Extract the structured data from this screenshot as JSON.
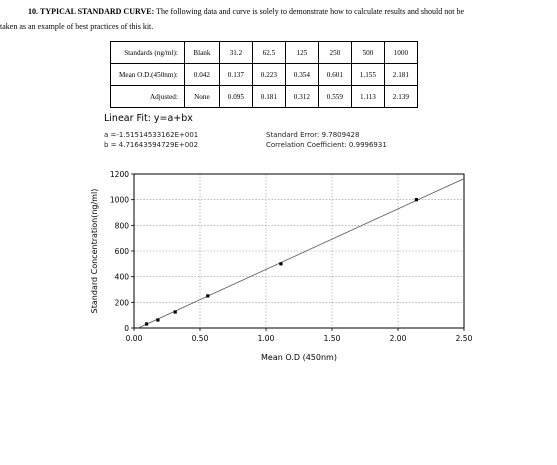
{
  "intro": {
    "number": "10.",
    "heading": "TYPICAL STANDARD CURVE:",
    "text_line1": "The following data and curve is solely to demonstrate how to calculate results and should not be",
    "text_line2": "taken as an example of best practices of this kit."
  },
  "standards_table": {
    "row_labels": [
      "Standards (ng/ml):",
      "Mean O.D.(450nm):",
      "Adjusted:"
    ],
    "standards": [
      "Blank",
      "31.2",
      "62.5",
      "125",
      "250",
      "500",
      "1000"
    ],
    "mean_od": [
      "0.042",
      "0.137",
      "0.223",
      "0.354",
      "0.601",
      "1.155",
      "2.181"
    ],
    "adjusted": [
      "None",
      "0.095",
      "0.181",
      "0.312",
      "0.559",
      "1.113",
      "2.139"
    ]
  },
  "fit": {
    "title": "Linear Fit: y=a+bx",
    "a_line": "a =-1.51514533162E+001",
    "b_line": "b = 4.71643594729E+002",
    "stderr_line": "Standard Error: 9.7809428",
    "corr_line": "Correlation Coefficient: 0.9996931"
  },
  "chart_data": {
    "type": "scatter",
    "xlabel": "Mean O.D (450nm)",
    "ylabel": "Standard Concentration(ng/ml)",
    "xlim": [
      0,
      2.5
    ],
    "ylim": [
      0,
      1200
    ],
    "xticks": [
      0,
      0.5,
      1,
      1.5,
      2,
      2.5
    ],
    "xtick_labels": [
      "0.00",
      "0.50",
      "1.00",
      "1.50",
      "2.00",
      "2.50"
    ],
    "yticks": [
      0,
      200,
      400,
      600,
      800,
      1000,
      1200
    ],
    "ytick_labels": [
      "0",
      "200",
      "400",
      "600",
      "800",
      "1000",
      "1200"
    ],
    "grid": "dotted",
    "points": [
      {
        "x": 0.095,
        "y": 31.2
      },
      {
        "x": 0.181,
        "y": 62.5
      },
      {
        "x": 0.312,
        "y": 125
      },
      {
        "x": 0.559,
        "y": 250
      },
      {
        "x": 1.113,
        "y": 500
      },
      {
        "x": 2.139,
        "y": 1000
      }
    ],
    "fit_line": {
      "intercept": -15.1514533162,
      "slope": 471.643594729
    }
  }
}
